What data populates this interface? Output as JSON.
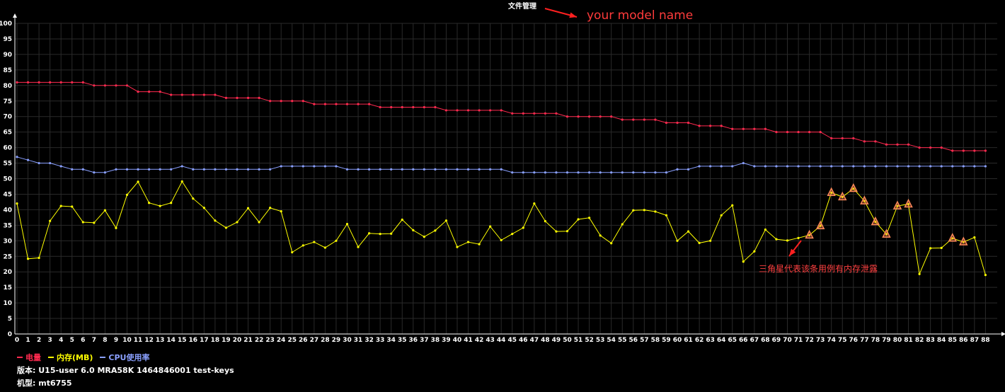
{
  "chart_data": {
    "type": "line",
    "title": "文件管理",
    "annotation_model": "your model name",
    "annotation_leak": "三角星代表该条用例有内存泄露",
    "ylim": [
      0,
      100
    ],
    "yticks": [
      0,
      5,
      10,
      15,
      20,
      25,
      30,
      35,
      40,
      45,
      50,
      55,
      60,
      65,
      70,
      75,
      80,
      85,
      90,
      95,
      100
    ],
    "x": [
      0,
      1,
      2,
      3,
      4,
      5,
      6,
      7,
      8,
      9,
      10,
      11,
      12,
      13,
      14,
      15,
      16,
      17,
      18,
      19,
      20,
      21,
      22,
      23,
      24,
      25,
      26,
      27,
      28,
      29,
      30,
      31,
      32,
      33,
      34,
      35,
      36,
      37,
      38,
      39,
      40,
      41,
      42,
      43,
      44,
      45,
      46,
      47,
      48,
      49,
      50,
      51,
      52,
      53,
      54,
      55,
      56,
      57,
      58,
      59,
      60,
      61,
      62,
      63,
      64,
      65,
      66,
      67,
      68,
      69,
      70,
      71,
      72,
      73,
      74,
      75,
      76,
      77,
      78,
      79,
      80,
      81,
      82,
      83,
      84,
      85,
      86,
      87,
      88
    ],
    "grid": true,
    "legend_position": "bottom-left",
    "series": [
      {
        "name": "电量",
        "color": "#ff2a4f",
        "values": [
          81,
          81,
          81,
          81,
          81,
          81,
          81,
          80,
          80,
          80,
          80,
          78,
          78,
          78,
          77,
          77,
          77,
          77,
          77,
          76,
          76,
          76,
          76,
          75,
          75,
          75,
          75,
          74,
          74,
          74,
          74,
          74,
          74,
          73,
          73,
          73,
          73,
          73,
          73,
          72,
          72,
          72,
          72,
          72,
          72,
          71,
          71,
          71,
          71,
          71,
          70,
          70,
          70,
          70,
          70,
          69,
          69,
          69,
          69,
          68,
          68,
          68,
          67,
          67,
          67,
          66,
          66,
          66,
          66,
          65,
          65,
          65,
          65,
          65,
          63,
          63,
          63,
          62,
          62,
          61,
          61,
          61,
          60,
          60,
          60,
          59,
          59,
          59,
          59
        ]
      },
      {
        "name": "内存(MB)",
        "color": "#ffff00",
        "values": [
          42,
          24.2,
          24.5,
          36.4,
          41.2,
          41,
          36,
          35.8,
          39.8,
          34.1,
          44.8,
          49,
          42.2,
          41.2,
          42.2,
          49.1,
          43.6,
          40.6,
          36.5,
          34.2,
          36,
          40.5,
          36,
          40.6,
          39.5,
          26.3,
          28.5,
          29.6,
          27.8,
          30,
          35.4,
          28,
          32.4,
          32.2,
          32.3,
          36.8,
          33.4,
          31.3,
          33.3,
          36.5,
          28,
          29.6,
          28.9,
          34.6,
          30.2,
          32.2,
          34.2,
          42,
          36.3,
          33,
          33.1,
          36.9,
          37.4,
          31.7,
          29.2,
          35.3,
          39.8,
          39.9,
          39.4,
          38.2,
          30,
          33,
          29.3,
          30,
          38.2,
          41.4,
          23.3,
          26.6,
          33.6,
          30.5,
          30.1,
          30.9,
          31.8,
          34.8,
          45.5,
          44.1,
          46.8,
          42.8,
          36.1,
          32.1,
          41.2,
          41.8,
          19.3,
          27.6,
          27.7,
          30.8,
          29.6,
          31.1,
          19
        ]
      },
      {
        "name": "CPU使用率",
        "color": "#8aa0ff",
        "values": [
          57,
          56,
          55,
          55,
          54,
          53,
          53,
          52,
          52,
          53,
          53,
          53,
          53,
          53,
          53,
          54,
          53,
          53,
          53,
          53,
          53,
          53,
          53,
          53,
          54,
          54,
          54,
          54,
          54,
          54,
          53,
          53,
          53,
          53,
          53,
          53,
          53,
          53,
          53,
          53,
          53,
          53,
          53,
          53,
          53,
          52,
          52,
          52,
          52,
          52,
          52,
          52,
          52,
          52,
          52,
          52,
          52,
          52,
          52,
          52,
          53,
          53,
          54,
          54,
          54,
          54,
          55,
          54,
          54,
          54,
          54,
          54,
          54,
          54,
          54,
          54,
          54,
          54,
          54,
          54,
          54,
          54,
          54,
          54,
          54,
          54,
          54,
          54,
          54
        ]
      }
    ],
    "leak_markers": [
      72,
      73,
      74,
      75,
      76,
      77,
      78,
      79,
      80,
      81,
      85,
      86
    ]
  },
  "footer": {
    "version_label": "版本:",
    "version_value": "U15-user 6.0 MRA58K 1464846001 test-keys",
    "device_label": "机型:",
    "device_value": "mt6755"
  }
}
